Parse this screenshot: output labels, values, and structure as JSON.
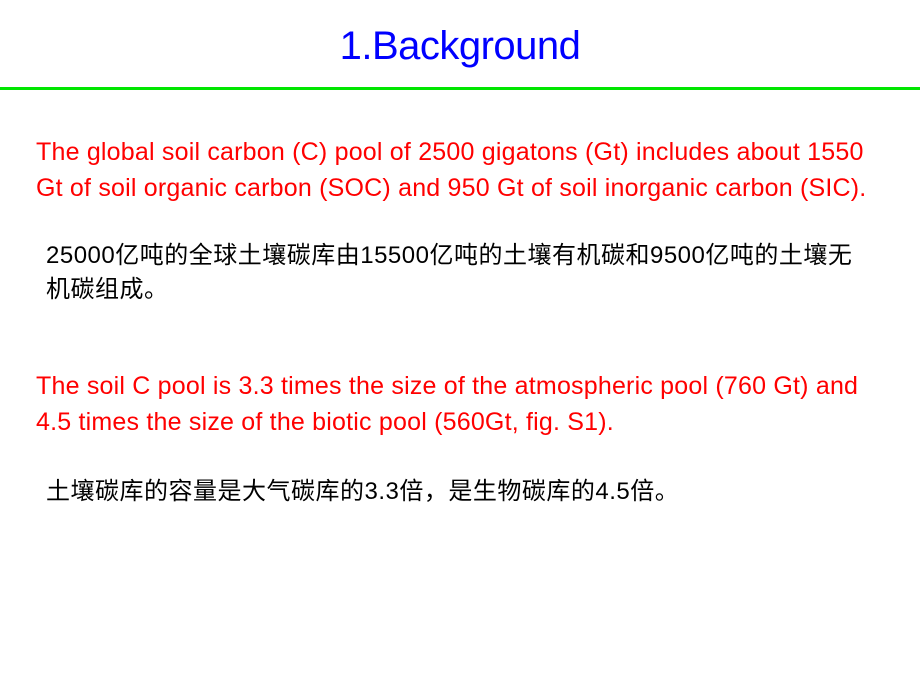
{
  "title": {
    "text": "1.Background",
    "color": "#0000ff",
    "fontsize": 40
  },
  "divider": {
    "color": "#00e600",
    "height": 3
  },
  "paragraphs": {
    "p1": {
      "text": "The global soil carbon (C) pool of 2500 gigatons (Gt) includes about 1550 Gt of soil organic carbon (SOC) and 950 Gt of soil inorganic carbon (SIC).",
      "color": "#ff0000",
      "fontsize": 25
    },
    "p2": {
      "text": "25000亿吨的全球土壤碳库由15500亿吨的土壤有机碳和9500亿吨的土壤无机碳组成。",
      "color": "#000000",
      "fontsize": 24
    },
    "p3": {
      "text": "The soil C pool is 3.3 times the size of the atmospheric pool (760 Gt) and 4.5 times the size of the biotic pool (560Gt, fig. S1).",
      "color": "#ff0000",
      "fontsize": 25
    },
    "p4": {
      "text": "土壤碳库的容量是大气碳库的3.3倍，是生物碳库的4.5倍。",
      "color": "#000000",
      "fontsize": 24
    }
  },
  "background_color": "#ffffff"
}
